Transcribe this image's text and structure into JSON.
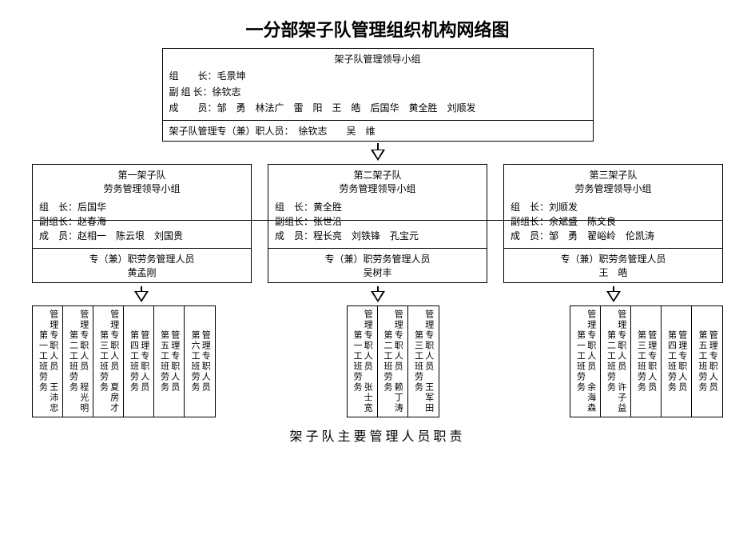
{
  "title": "一分部架子队管理组织机构网络图",
  "footer_title": "架子队主要管理人员职责",
  "colors": {
    "line": "#000000",
    "bg": "#ffffff",
    "text": "#000000"
  },
  "top_box": {
    "header": "架子队管理领导小组",
    "rows": [
      {
        "label": "组　　长：",
        "value": "毛景坤"
      },
      {
        "label": "副 组 长：",
        "value": "徐钦志"
      },
      {
        "label": "成　　员：",
        "value": "邹　勇　林法广　雷　阳　王　皓　后国华　黄全胜　刘顺发"
      }
    ],
    "footer": {
      "label": "架子队管理专（兼）职人员：",
      "value": "　徐钦志　　吴　维"
    }
  },
  "mid": [
    {
      "title": "第一架子队",
      "subtitle": "劳务管理领导小组",
      "rows": [
        {
          "label": "组　长：",
          "value": "后国华"
        },
        {
          "label": "副组长：",
          "value": "赵春海"
        },
        {
          "label": "成　员：",
          "value": "赵相一　陈云垠　刘国贵"
        }
      ],
      "mgr_label": "专（兼）职劳务管理人员",
      "mgr_name": "黄孟刚"
    },
    {
      "title": "第二架子队",
      "subtitle": "劳务管理领导小组",
      "rows": [
        {
          "label": "组　长：",
          "value": "黄全胜"
        },
        {
          "label": "副组长：",
          "value": "张世沿"
        },
        {
          "label": "成　员：",
          "value": "程长亮　刘铁锋　孔宝元"
        }
      ],
      "mgr_label": "专（兼）职劳务管理人员",
      "mgr_name": "吴树丰"
    },
    {
      "title": "第三架子队",
      "subtitle": "劳务管理领导小组",
      "rows": [
        {
          "label": "组　长：",
          "value": "刘顺发"
        },
        {
          "label": "副组长：",
          "value": "余斌盛　陈文良"
        },
        {
          "label": "成　员：",
          "value": "邹　勇　翟峪岭　伦凯涛"
        }
      ],
      "mgr_label": "专（兼）职劳务管理人员",
      "mgr_name": "王　皓"
    }
  ],
  "bottom": [
    {
      "cells": [
        {
          "col1": "第一工班劳务",
          "col2": "管理专职人员",
          "name": "王沛忠"
        },
        {
          "col1": "第二工班劳务",
          "col2": "管理专职人员",
          "name": "程光明"
        },
        {
          "col1": "第三工班劳务",
          "col2": "管理专职人员",
          "name": "夏房才"
        },
        {
          "col1": "第四工班劳务",
          "col2": "管理专职人员",
          "name": ""
        },
        {
          "col1": "第五工班劳务",
          "col2": "管理专职人员",
          "name": ""
        },
        {
          "col1": "第六工班劳务",
          "col2": "管理专职人员",
          "name": ""
        }
      ]
    },
    {
      "cells": [
        {
          "col1": "第一工班劳务",
          "col2": "管理专职人员",
          "name": "张士宽"
        },
        {
          "col1": "第二工班劳务",
          "col2": "管理专职人员",
          "name": "赖丁涛"
        },
        {
          "col1": "第三工班劳务",
          "col2": "管理专职人员",
          "name": "王军田"
        }
      ]
    },
    {
      "cells": [
        {
          "col1": "第一工班劳务",
          "col2": "管理专职人员",
          "name": "余海森"
        },
        {
          "col1": "第二工班劳务",
          "col2": "管理专职人员",
          "name": "许子益"
        },
        {
          "col1": "第三工班劳务",
          "col2": "管理专职人员",
          "name": ""
        },
        {
          "col1": "第四工班劳务",
          "col2": "管理专职人员",
          "name": ""
        },
        {
          "col1": "第五工班劳务",
          "col2": "管理专职人员",
          "name": ""
        }
      ]
    }
  ]
}
